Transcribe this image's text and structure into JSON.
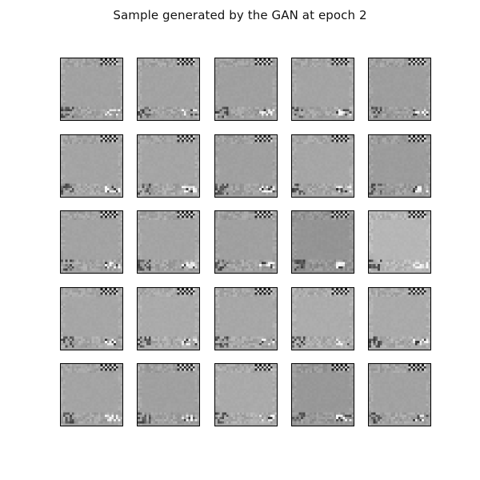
{
  "figure": {
    "title": "Sample generated by the GAN at epoch 2",
    "rows": 5,
    "cols": 5,
    "image_resolution": 28,
    "tile_base_gray": [
      [
        162,
        163,
        160,
        164,
        158
      ],
      [
        164,
        165,
        160,
        166,
        156
      ],
      [
        163,
        164,
        160,
        148,
        182
      ],
      [
        166,
        170,
        167,
        172,
        170
      ],
      [
        164,
        160,
        170,
        152,
        162
      ]
    ]
  }
}
